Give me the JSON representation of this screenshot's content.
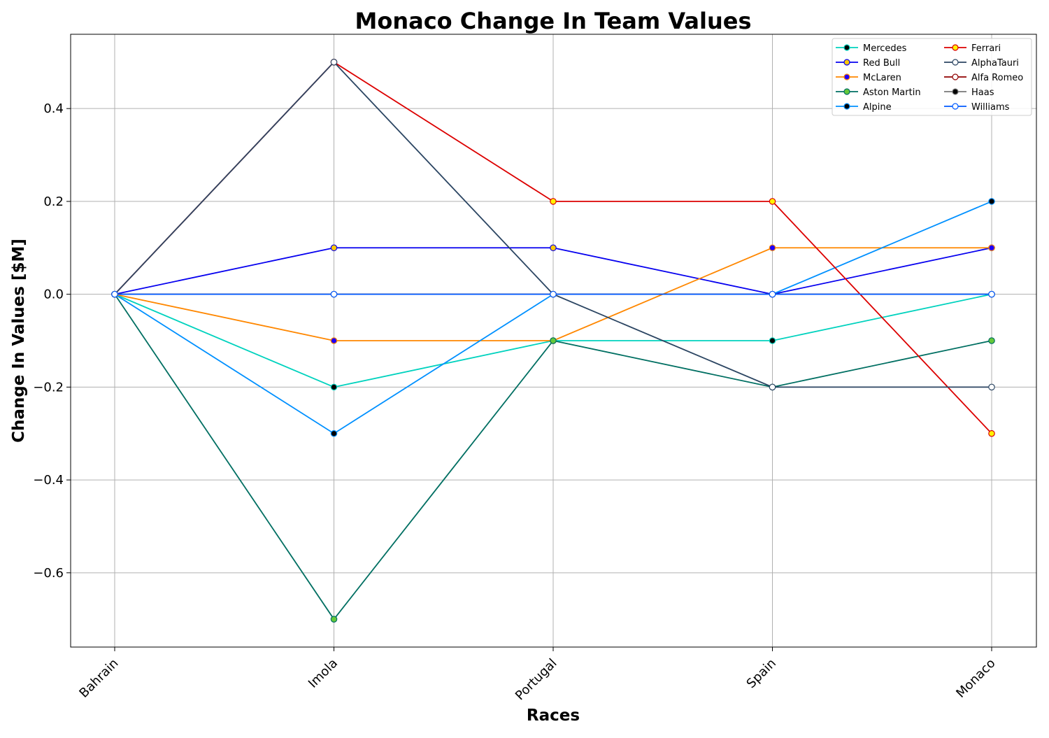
{
  "chart_data": {
    "type": "line",
    "title": "Monaco Change In Team Values",
    "xlabel": "Races",
    "ylabel": "Change In Values [$M]",
    "categories": [
      "Bahrain",
      "Imola",
      "Portugal",
      "Spain",
      "Monaco"
    ],
    "ylim": [
      -0.76,
      0.56
    ],
    "yticks": [
      -0.6,
      -0.4,
      -0.2,
      0.0,
      0.2,
      0.4
    ],
    "ytick_labels": [
      "−0.6",
      "−0.4",
      "−0.2",
      "0.0",
      "0.2",
      "0.4"
    ],
    "grid": true,
    "legend_position": "top-right",
    "legend_columns": 2,
    "series": [
      {
        "name": "Mercedes",
        "values": [
          0,
          -0.2,
          -0.1,
          -0.1,
          0.0
        ],
        "color": "#00D2BE",
        "marker_fill": "#000000"
      },
      {
        "name": "Red Bull",
        "values": [
          0,
          0.1,
          0.1,
          0.0,
          0.1
        ],
        "color": "#0600EF",
        "marker_fill": "#FFC906"
      },
      {
        "name": "McLaren",
        "values": [
          0,
          -0.1,
          -0.1,
          0.1,
          0.1
        ],
        "color": "#FF8700",
        "marker_fill": "#1E00FF"
      },
      {
        "name": "Aston Martin",
        "values": [
          0,
          -0.7,
          -0.1,
          -0.2,
          -0.1
        ],
        "color": "#006F62",
        "marker_fill": "#65C83A"
      },
      {
        "name": "Alpine",
        "values": [
          0,
          -0.3,
          0.0,
          0.0,
          0.2
        ],
        "color": "#0090FF",
        "marker_fill": "#000000"
      },
      {
        "name": "Ferrari",
        "values": [
          0,
          0.5,
          0.2,
          0.2,
          -0.3
        ],
        "color": "#DC0000",
        "marker_fill": "#FFF200"
      },
      {
        "name": "AlphaTauri",
        "values": [
          0,
          0.5,
          0.0,
          -0.2,
          -0.2
        ],
        "color": "#2B4562",
        "marker_fill": "#FFFFFF"
      },
      {
        "name": "Alfa Romeo",
        "values": [
          0,
          0.0,
          0.0,
          0.0,
          0.0
        ],
        "color": "#900000",
        "marker_fill": "#FFFFFF"
      },
      {
        "name": "Haas",
        "values": [
          0,
          0.0,
          0.0,
          0.0,
          0.0
        ],
        "color": "#787878",
        "marker_fill": "#000000"
      },
      {
        "name": "Williams",
        "values": [
          0,
          0.0,
          0.0,
          0.0,
          0.0
        ],
        "color": "#005AFF",
        "marker_fill": "#FFFFFF"
      }
    ]
  }
}
